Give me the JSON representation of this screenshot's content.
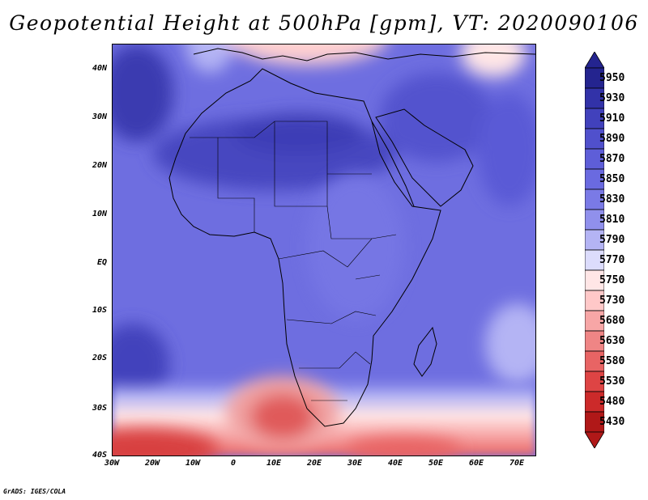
{
  "title": "Geopotential Height at 500hPa [gpm], VT: 2020090106",
  "credit": "GrADS: IGES/COLA",
  "latitude_labels": [
    "40N",
    "30N",
    "20N",
    "10N",
    "EQ",
    "10S",
    "20S",
    "30S",
    "40S"
  ],
  "longitude_labels": [
    "30W",
    "20W",
    "10W",
    "0",
    "10E",
    "20E",
    "30E",
    "40E",
    "50E",
    "60E",
    "70E"
  ],
  "colorbar": {
    "levels": [
      "5950",
      "5930",
      "5910",
      "5890",
      "5870",
      "5850",
      "5830",
      "5810",
      "5790",
      "5770",
      "5750",
      "5730",
      "5680",
      "5630",
      "5580",
      "5530",
      "5480",
      "5430"
    ],
    "colors": [
      "#24248f",
      "#3232a8",
      "#4141bc",
      "#5050cc",
      "#5e5ed8",
      "#6a6ae0",
      "#7a7ae6",
      "#9090ec",
      "#b4b4f4",
      "#dcdcfc",
      "#ffe6e6",
      "#ffc8c8",
      "#f7a6a6",
      "#ef8585",
      "#e86464",
      "#de4444",
      "#cc2a2a",
      "#b01818"
    ]
  },
  "layer": {
    "field": "Geopotential Height",
    "level": "500hPa",
    "units": "gpm",
    "valid_time": "2020090106"
  }
}
